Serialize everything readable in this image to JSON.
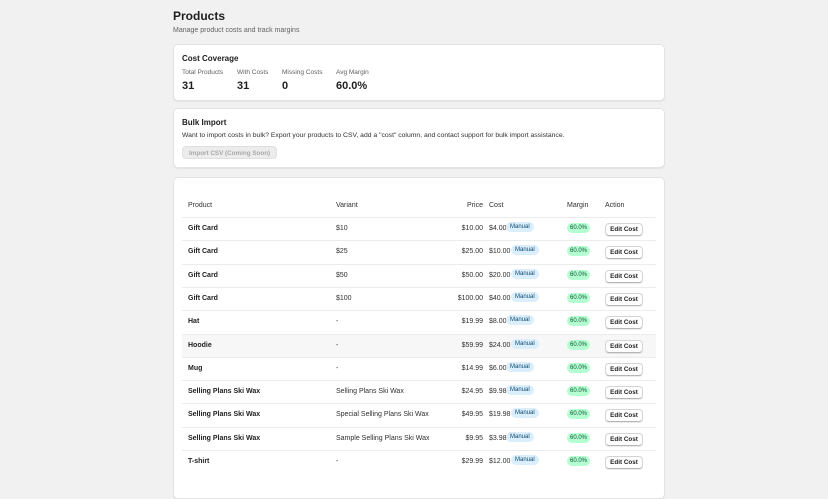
{
  "header": {
    "title": "Products",
    "subtitle": "Manage product costs and track margins"
  },
  "coverage": {
    "title": "Cost Coverage",
    "stats": [
      {
        "label": "Total Products",
        "value": "31"
      },
      {
        "label": "With Costs",
        "value": "31"
      },
      {
        "label": "Missing Costs",
        "value": "0"
      },
      {
        "label": "Avg Margin",
        "value": "60.0%"
      }
    ]
  },
  "bulk": {
    "title": "Bulk Import",
    "description": "Want to import costs in bulk? Export your products to CSV, add a \"cost\" column, and contact support for bulk import assistance.",
    "button_label": "Import CSV (Coming Soon)"
  },
  "table": {
    "headers": {
      "product": "Product",
      "variant": "Variant",
      "price": "Price",
      "cost": "Cost",
      "margin": "Margin",
      "action": "Action"
    },
    "rows": [
      {
        "product": "Gift Card",
        "variant": "$10",
        "price": "$10.00",
        "cost": "$4.00",
        "source": "Manual",
        "margin": "60.0%",
        "action": "Edit Cost"
      },
      {
        "product": "Gift Card",
        "variant": "$25",
        "price": "$25.00",
        "cost": "$10.00",
        "source": "Manual",
        "margin": "60.0%",
        "action": "Edit Cost"
      },
      {
        "product": "Gift Card",
        "variant": "$50",
        "price": "$50.00",
        "cost": "$20.00",
        "source": "Manual",
        "margin": "60.0%",
        "action": "Edit Cost"
      },
      {
        "product": "Gift Card",
        "variant": "$100",
        "price": "$100.00",
        "cost": "$40.00",
        "source": "Manual",
        "margin": "60.0%",
        "action": "Edit Cost"
      },
      {
        "product": "Hat",
        "variant": "-",
        "price": "$19.99",
        "cost": "$8.00",
        "source": "Manual",
        "margin": "60.0%",
        "action": "Edit Cost"
      },
      {
        "product": "Hoodie",
        "variant": "-",
        "price": "$59.99",
        "cost": "$24.00",
        "source": "Manual",
        "margin": "60.0%",
        "action": "Edit Cost"
      },
      {
        "product": "Mug",
        "variant": "-",
        "price": "$14.99",
        "cost": "$6.00",
        "source": "Manual",
        "margin": "60.0%",
        "action": "Edit Cost"
      },
      {
        "product": "Selling Plans Ski Wax",
        "variant": "Selling Plans Ski Wax",
        "price": "$24.95",
        "cost": "$9.98",
        "source": "Manual",
        "margin": "60.0%",
        "action": "Edit Cost"
      },
      {
        "product": "Selling Plans Ski Wax",
        "variant": "Special Selling Plans Ski Wax",
        "price": "$49.95",
        "cost": "$19.98",
        "source": "Manual",
        "margin": "60.0%",
        "action": "Edit Cost"
      },
      {
        "product": "Selling Plans Ski Wax",
        "variant": "Sample Selling Plans Ski Wax",
        "price": "$9.95",
        "cost": "$3.98",
        "source": "Manual",
        "margin": "60.0%",
        "action": "Edit Cost"
      },
      {
        "product": "T-shirt",
        "variant": "-",
        "price": "$29.99",
        "cost": "$12.00",
        "source": "Manual",
        "margin": "60.0%",
        "action": "Edit Cost"
      }
    ]
  }
}
